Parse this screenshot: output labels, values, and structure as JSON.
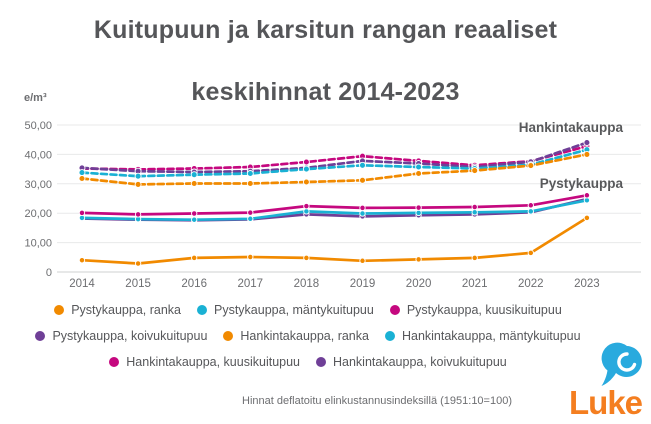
{
  "header": {
    "title_line1": "Kuitupuun ja karsitun rangan reaaliset",
    "title_line2": "keskihinnat 2014-2023"
  },
  "chart_data": {
    "type": "line",
    "title": "Kuitupuun ja karsitun rangan reaaliset keskihinnat 2014-2023",
    "unit_label": "e/m³",
    "x": [
      2014,
      2015,
      2016,
      2017,
      2018,
      2019,
      2020,
      2021,
      2022,
      2023
    ],
    "ylim": [
      0,
      50
    ],
    "grid": true,
    "yticks": [
      {
        "value": 0,
        "label": "0"
      },
      {
        "value": 10,
        "label": "10,00"
      },
      {
        "value": 20,
        "label": "20,00"
      },
      {
        "value": 30,
        "label": "30,00"
      },
      {
        "value": 40,
        "label": "40,00"
      },
      {
        "value": 50,
        "label": "50,00"
      }
    ],
    "series": [
      {
        "name": "Pystykauppa, ranka",
        "color": "#f18a00",
        "dash": false,
        "values": [
          4.0,
          2.9,
          4.8,
          5.1,
          4.8,
          3.8,
          4.3,
          4.8,
          6.5,
          18.4
        ]
      },
      {
        "name": "Pystykauppa, mäntykuitupuu",
        "color": "#1ab1d4",
        "dash": false,
        "values": [
          18.4,
          18.0,
          17.8,
          18.1,
          20.6,
          19.9,
          20.1,
          20.3,
          20.6,
          24.4
        ]
      },
      {
        "name": "Pystykauppa, kuusikuitupuu",
        "color": "#c5087f",
        "dash": false,
        "values": [
          20.1,
          19.6,
          19.9,
          20.2,
          22.4,
          21.8,
          21.9,
          22.1,
          22.7,
          26.1
        ]
      },
      {
        "name": "Pystykauppa, koivukuitupuu",
        "color": "#6f3f97",
        "dash": false,
        "values": [
          18.2,
          17.8,
          17.6,
          17.9,
          19.6,
          18.9,
          19.3,
          19.6,
          20.3,
          24.8
        ]
      },
      {
        "name": "Hankintakauppa, ranka",
        "color": "#f18a00",
        "dash": true,
        "values": [
          31.8,
          29.8,
          30.1,
          30.1,
          30.6,
          31.2,
          33.5,
          34.5,
          36.2,
          40.0
        ]
      },
      {
        "name": "Hankintakauppa, mäntykuitupuu",
        "color": "#1ab1d4",
        "dash": true,
        "values": [
          33.8,
          32.6,
          33.1,
          33.5,
          35.0,
          36.3,
          35.7,
          35.2,
          36.5,
          41.6
        ]
      },
      {
        "name": "Hankintakauppa, kuusikuitupuu",
        "color": "#c5087f",
        "dash": true,
        "values": [
          35.2,
          34.9,
          35.2,
          35.7,
          37.4,
          39.4,
          37.8,
          36.3,
          37.7,
          42.8
        ]
      },
      {
        "name": "Hankintakauppa, koivukuitupuu",
        "color": "#6f3f97",
        "dash": true,
        "values": [
          35.4,
          34.3,
          34.0,
          34.3,
          35.4,
          37.8,
          36.9,
          35.7,
          37.5,
          44.0
        ]
      }
    ],
    "annotations": [
      {
        "text": "Hankintakauppa"
      },
      {
        "text": "Pystykauppa"
      }
    ],
    "legend_position": "bottom"
  },
  "legend": {
    "row_series_indices": [
      [
        0,
        1,
        2
      ],
      [
        3,
        4,
        5
      ],
      [
        6,
        7
      ]
    ]
  },
  "footer": {
    "note": "Hinnat deflatoitu elinkustannusindeksillä (1951:10=100)"
  },
  "logo": {
    "text": "Luke",
    "text_color": "#f47e20",
    "leaf_color": "#29aade"
  },
  "colors": {
    "title": "#555659",
    "axis_text": "#6d6e71",
    "gridline": "#e8e9ea",
    "baseline": "#cfd0d2",
    "annotation": "#58595b"
  }
}
